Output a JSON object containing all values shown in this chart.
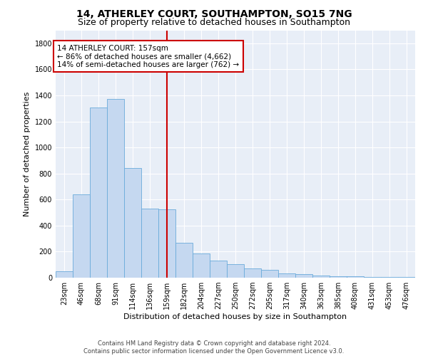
{
  "title": "14, ATHERLEY COURT, SOUTHAMPTON, SO15 7NG",
  "subtitle": "Size of property relative to detached houses in Southampton",
  "xlabel": "Distribution of detached houses by size in Southampton",
  "ylabel": "Number of detached properties",
  "categories": [
    "23sqm",
    "46sqm",
    "68sqm",
    "91sqm",
    "114sqm",
    "136sqm",
    "159sqm",
    "182sqm",
    "204sqm",
    "227sqm",
    "250sqm",
    "272sqm",
    "295sqm",
    "317sqm",
    "340sqm",
    "363sqm",
    "385sqm",
    "408sqm",
    "431sqm",
    "453sqm",
    "476sqm"
  ],
  "values": [
    50,
    640,
    1305,
    1375,
    840,
    530,
    525,
    270,
    185,
    130,
    105,
    70,
    60,
    32,
    30,
    18,
    10,
    10,
    8,
    8,
    8
  ],
  "bar_color": "#c5d8f0",
  "bar_edge_color": "#6aabdb",
  "highlight_index": 6,
  "vline_color": "#cc0000",
  "annotation_box_edge_color": "#cc0000",
  "annotation_line1": "14 ATHERLEY COURT: 157sqm",
  "annotation_line2": "← 86% of detached houses are smaller (4,662)",
  "annotation_line3": "14% of semi-detached houses are larger (762) →",
  "footer_line1": "Contains HM Land Registry data © Crown copyright and database right 2024.",
  "footer_line2": "Contains public sector information licensed under the Open Government Licence v3.0.",
  "ylim": [
    0,
    1900
  ],
  "yticks": [
    0,
    200,
    400,
    600,
    800,
    1000,
    1200,
    1400,
    1600,
    1800
  ],
  "plot_bg_color": "#e8eef7",
  "grid_color": "#ffffff",
  "title_fontsize": 10,
  "subtitle_fontsize": 9,
  "axis_label_fontsize": 8,
  "tick_fontsize": 7,
  "annotation_fontsize": 7.5,
  "footer_fontsize": 6
}
